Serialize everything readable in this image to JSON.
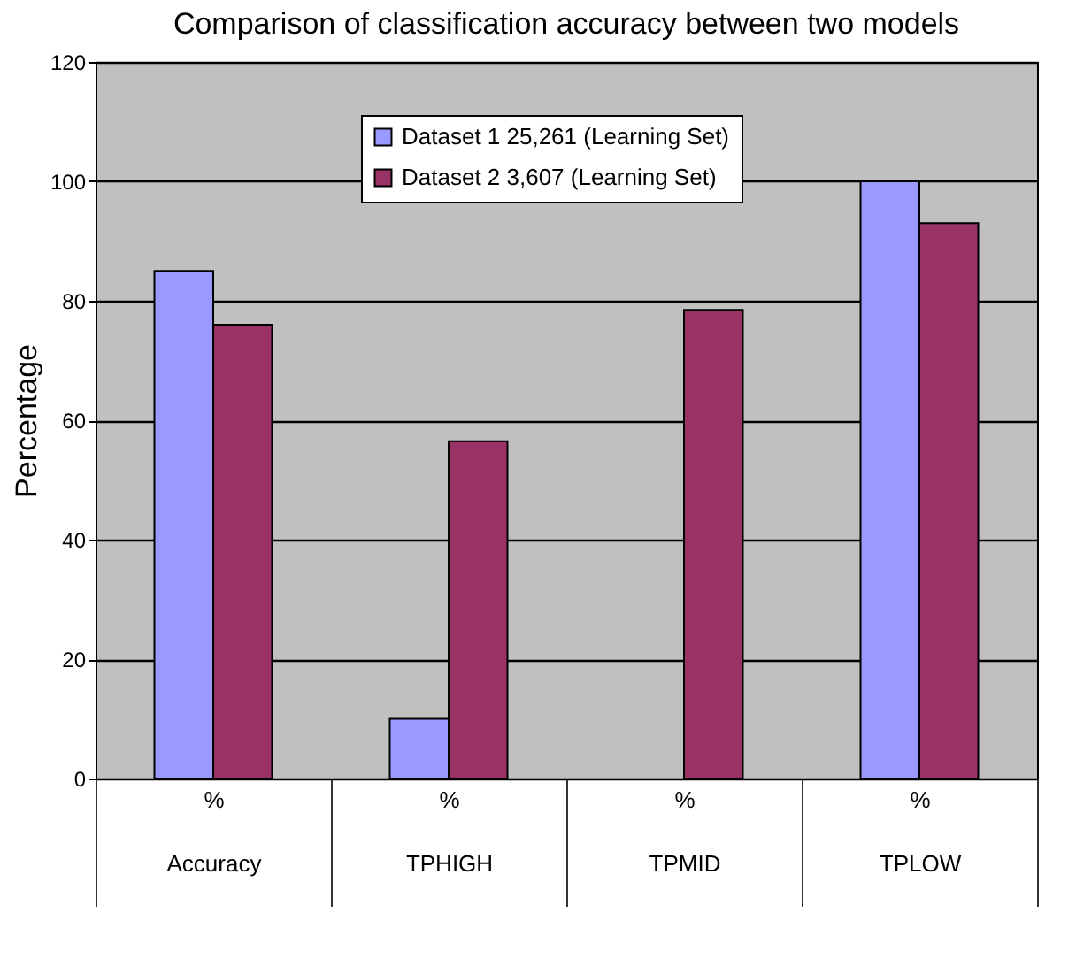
{
  "chart_data": {
    "type": "bar",
    "title": "Comparison of classification accuracy between two models",
    "ylabel": "Percentage",
    "categories": [
      "%\nAccuracy",
      "%\nTPHIGH",
      "%\nTPMID",
      "%\nTPLOW"
    ],
    "series": [
      {
        "name": "Dataset 1 25,261 (Learning Set)",
        "color": "#9999ff",
        "values": [
          85,
          10,
          null,
          100
        ]
      },
      {
        "name": "Dataset 2 3,607 (Learning Set)",
        "color": "#993366",
        "values": [
          76,
          56.5,
          78.5,
          93
        ]
      }
    ],
    "ylim": [
      0,
      120
    ],
    "yticks": [
      0,
      20,
      40,
      60,
      80,
      100,
      120
    ],
    "grid": "y",
    "legend": "top"
  }
}
